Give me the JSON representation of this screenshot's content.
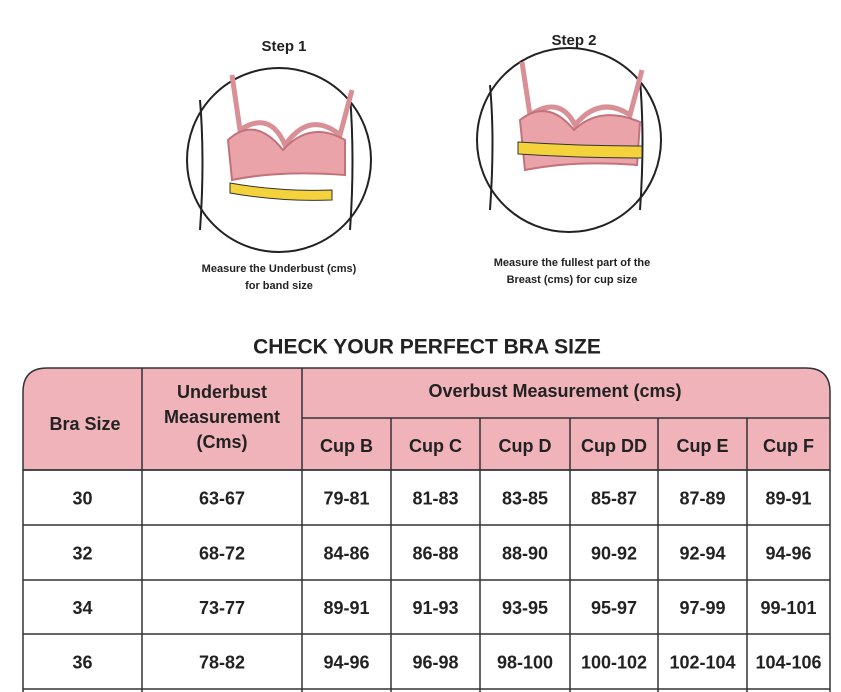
{
  "steps": [
    {
      "title": "Step 1",
      "caption": [
        "Measure the Underbust (cms)",
        "for band size"
      ]
    },
    {
      "title": "Step 2",
      "caption": [
        "Measure the fullest part of the",
        "Breast (cms) for cup size"
      ]
    }
  ],
  "table": {
    "title": "CHECK YOUR PERFECT BRA SIZE",
    "headers": {
      "bra_size": "Bra Size",
      "underbust": [
        "Underbust",
        "Measurement",
        "(Cms)"
      ],
      "overbust": "Overbust Measurement (cms)",
      "cups": [
        "Cup B",
        "Cup C",
        "Cup D",
        "Cup DD",
        "Cup E",
        "Cup F"
      ]
    },
    "rows": [
      [
        "30",
        "63-67",
        "79-81",
        "81-83",
        "83-85",
        "85-87",
        "87-89",
        "89-91"
      ],
      [
        "32",
        "68-72",
        "84-86",
        "86-88",
        "88-90",
        "90-92",
        "92-94",
        "94-96"
      ],
      [
        "34",
        "73-77",
        "89-91",
        "91-93",
        "93-95",
        "95-97",
        "97-99",
        "99-101"
      ],
      [
        "36",
        "78-82",
        "94-96",
        "96-98",
        "98-100",
        "100-102",
        "102-104",
        "104-106"
      ]
    ]
  }
}
